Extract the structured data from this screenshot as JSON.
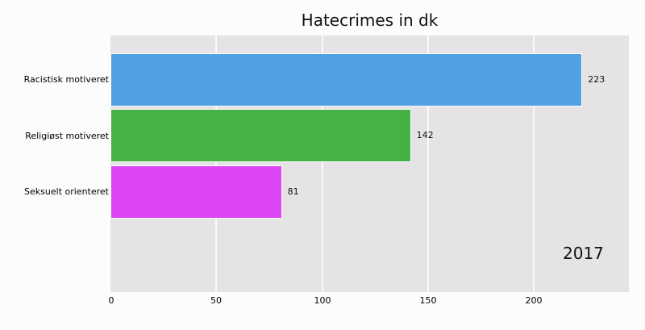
{
  "chart_data": {
    "type": "bar",
    "orientation": "horizontal",
    "title": "Hatecrimes in dk",
    "categories": [
      "Racistisk motiveret",
      "Religiøst motiveret",
      "Seksuelt orienteret"
    ],
    "values": [
      223,
      142,
      81
    ],
    "colors": [
      "#4a9de2",
      "#3eb03e",
      "#db3df5"
    ],
    "value_labels": [
      "223",
      "142",
      "81"
    ],
    "xlabel": "",
    "ylabel": "",
    "xlim": [
      0,
      245
    ],
    "xticks": [
      "0",
      "50",
      "100",
      "150",
      "200"
    ],
    "grid": true,
    "annotation": "2017",
    "background": "#e5e3e6"
  }
}
